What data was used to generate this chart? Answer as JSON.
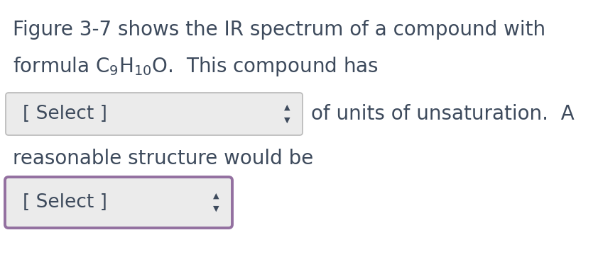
{
  "background_color": "#ffffff",
  "text_color": "#3d4a5c",
  "line1": "Figure 3-7 shows the IR spectrum of a compound with",
  "formula_text": "formula $\\mathrm{C_9H_{10}O}$.  This compound has",
  "select1_label": "[ Select ]",
  "after_select1": "of units of unsaturation.  A",
  "line3": "reasonable structure would be",
  "select2_label": "[ Select ]",
  "font_size": 20,
  "select_font_size": 19,
  "box1_facecolor": "#ebebeb",
  "box1_edgecolor": "#b8b8b8",
  "box2_facecolor": "#ebebeb",
  "box2_edgecolor": "#9370a0",
  "arrow_color": "#3d4a5c",
  "arrow_fontsize": 8
}
